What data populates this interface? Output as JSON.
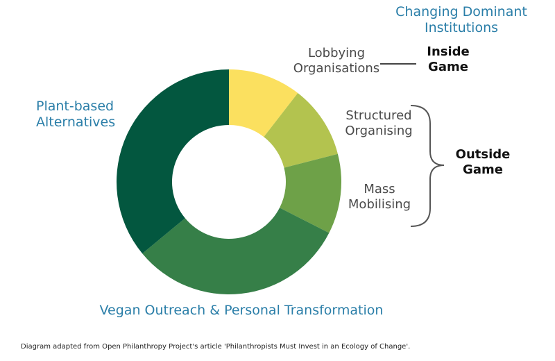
{
  "diagram": {
    "title": "Changing Dominant\nInstitutions",
    "segments": [
      {
        "id": "lobbying",
        "label": "Lobbying\nOrganisations",
        "share": 0.105,
        "color": "#fbe05f"
      },
      {
        "id": "structured",
        "label": "Structured\nOrganising",
        "share": 0.105,
        "color": "#b3c34f"
      },
      {
        "id": "mass",
        "label": "Mass\nMobilising",
        "share": 0.115,
        "color": "#6ea148"
      },
      {
        "id": "vegan",
        "label": "Vegan Outreach & Personal Transformation",
        "share": 0.315,
        "color": "#367f48"
      },
      {
        "id": "plant",
        "label": "Plant-based\nAlternatives",
        "share": 0.36,
        "color": "#03573f"
      }
    ],
    "groups": {
      "inside": "Inside\nGame",
      "outside": "Outside\nGame"
    },
    "footer": "Diagram adapted from Open Philanthropy Project's article 'Philanthropists Must Invest in an Ecology of Change'."
  }
}
